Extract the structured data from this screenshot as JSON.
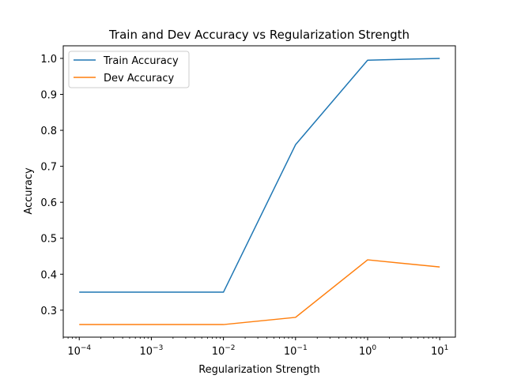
{
  "chart_data": {
    "type": "line",
    "title": "Train and Dev Accuracy vs Regularization Strength",
    "xlabel": "Regularization Strength",
    "ylabel": "Accuracy",
    "xscale": "log",
    "x": [
      0.0001,
      0.001,
      0.01,
      0.1,
      1,
      10
    ],
    "x_tick_labels": [
      {
        "base": "10",
        "exp": "−4"
      },
      {
        "base": "10",
        "exp": "−3"
      },
      {
        "base": "10",
        "exp": "−2"
      },
      {
        "base": "10",
        "exp": "−1"
      },
      {
        "base": "10",
        "exp": "0"
      },
      {
        "base": "10",
        "exp": "1"
      }
    ],
    "y_ticks": [
      0.3,
      0.4,
      0.5,
      0.6,
      0.7,
      0.8,
      0.9,
      1.0
    ],
    "y_tick_labels": [
      "0.3",
      "0.4",
      "0.5",
      "0.6",
      "0.7",
      "0.8",
      "0.9",
      "1.0"
    ],
    "ylim": [
      0.225,
      1.035
    ],
    "xlim": [
      6e-05,
      16.5
    ],
    "grid": false,
    "legend_position": "upper left",
    "series": [
      {
        "name": "Train Accuracy",
        "color": "#1f77b4",
        "values": [
          0.35,
          0.35,
          0.35,
          0.76,
          0.995,
          1.0
        ]
      },
      {
        "name": "Dev Accuracy",
        "color": "#ff7f0e",
        "values": [
          0.26,
          0.26,
          0.26,
          0.28,
          0.44,
          0.42
        ]
      }
    ]
  }
}
